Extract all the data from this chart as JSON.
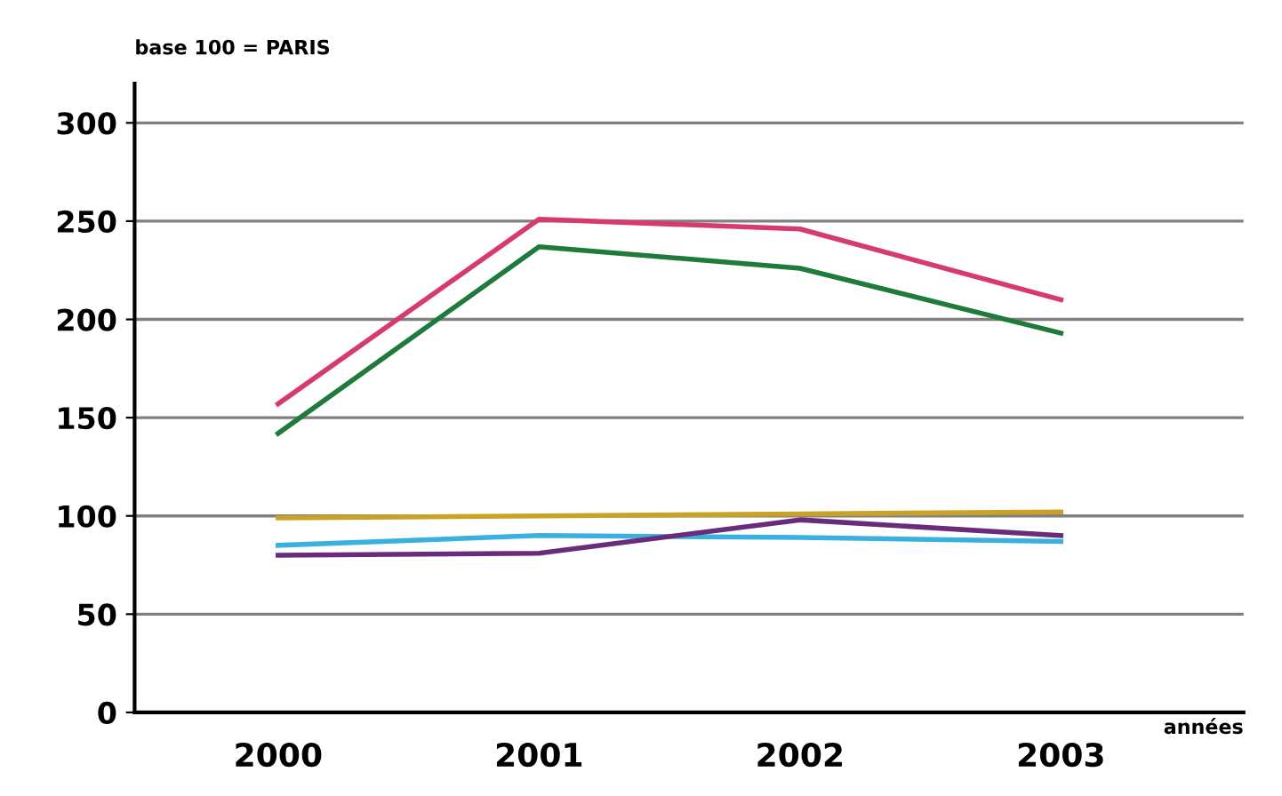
{
  "chart_data": {
    "type": "line",
    "ylabel": "base 100 = PARIS",
    "xlabel": "années",
    "categories": [
      "2000",
      "2001",
      "2002",
      "2003"
    ],
    "series": [
      {
        "color": "#d63a6e",
        "values": [
          157,
          251,
          246,
          210
        ]
      },
      {
        "color": "#1f7a3c",
        "values": [
          142,
          237,
          226,
          193
        ]
      },
      {
        "color": "#c9a227",
        "values": [
          99,
          100,
          101,
          102
        ]
      },
      {
        "color": "#3ab0e0",
        "values": [
          85,
          90,
          89,
          87
        ]
      },
      {
        "color": "#6a2c7a",
        "values": [
          80,
          81,
          98,
          90
        ]
      }
    ],
    "ylim": [
      0,
      320
    ],
    "yticks": [
      0,
      50,
      100,
      150,
      200,
      250,
      300
    ],
    "grid": "y",
    "marker": "none",
    "line_style": "solid"
  }
}
